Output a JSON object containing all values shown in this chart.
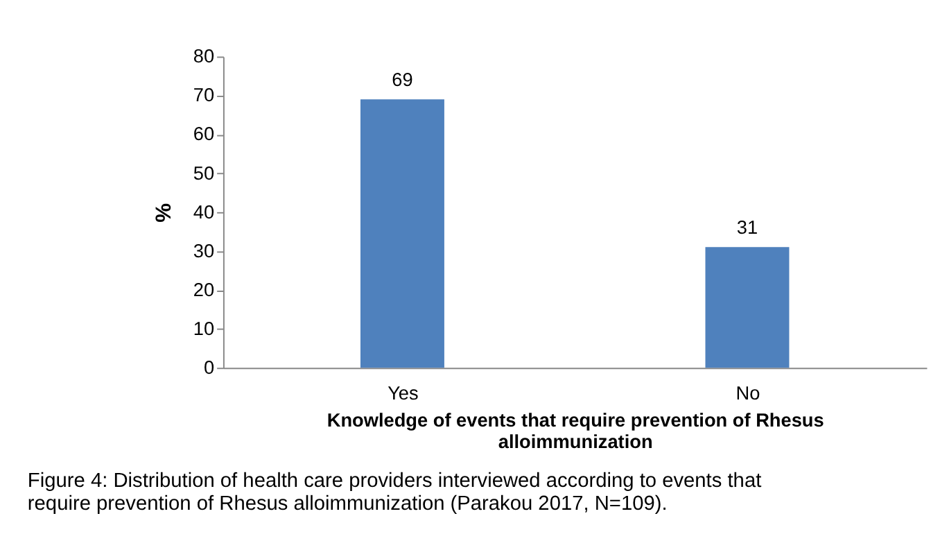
{
  "chart_data": {
    "type": "bar",
    "categories": [
      "Yes",
      "No"
    ],
    "values": [
      69,
      31
    ],
    "color": "#4f81bd",
    "xlabel": "Knowledge of events that require prevention of Rhesus alloimmunization",
    "ylabel": "%",
    "ylim": [
      0,
      80
    ],
    "yticks": [
      0,
      10,
      20,
      30,
      40,
      50,
      60,
      70,
      80
    ],
    "data_labels": true,
    "grid": false,
    "annotations": [
      "Figure 4: Distribution of health care providers interviewed according to events that require prevention of Rhesus alloimmunization (Parakou 2017, N=109)."
    ]
  }
}
